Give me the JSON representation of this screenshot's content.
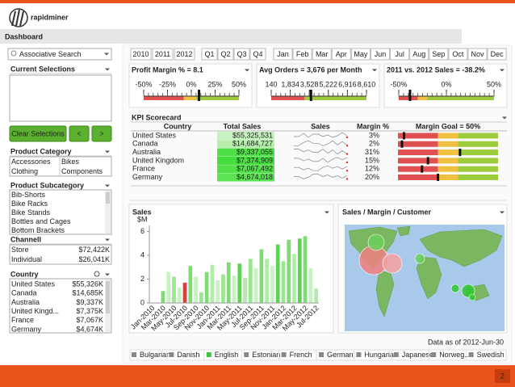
{
  "header": {
    "logo": "rapidminer",
    "title": "Dashboard",
    "page_number": "2"
  },
  "sidebar": {
    "search": "Associative Search",
    "current_selections": "Current Selections",
    "buttons": [
      "Clear Selections",
      "<",
      ">"
    ],
    "product_category": {
      "title": "Product Category",
      "items": [
        "Accessories",
        "Bikes",
        "Clothing",
        "Components"
      ]
    },
    "product_subcategory": {
      "title": "Product Subcategory",
      "items": [
        "Bib-Shorts",
        "Bike Racks",
        "Bike Stands",
        "Bottles and Cages",
        "Bottom Brackets"
      ]
    },
    "channel": {
      "title": "Channell",
      "rows": [
        [
          "Store",
          "$72,422K"
        ],
        [
          "Individual",
          "$26,041K"
        ]
      ]
    },
    "country": {
      "title": "Country",
      "rows": [
        [
          "United States",
          "$55,326K"
        ],
        [
          "Canada",
          "$14,685K"
        ],
        [
          "Australia",
          "$9,337K"
        ],
        [
          "United Kingd...",
          "$7,375K"
        ],
        [
          "France",
          "$7,067K"
        ],
        [
          "Germany",
          "$4,674K"
        ]
      ]
    }
  },
  "time_filter": {
    "years": [
      "2010",
      "2011",
      "2012"
    ],
    "quarters": [
      "Q1",
      "Q2",
      "Q3",
      "Q4"
    ],
    "months": [
      "Jan",
      "Feb",
      "Mar",
      "Apr",
      "May",
      "Jun",
      "Jul",
      "Aug",
      "Sep",
      "Oct",
      "Nov",
      "Dec"
    ]
  },
  "gauges": [
    {
      "title": "Profit Margin % = 8.1",
      "value": 8.1,
      "ticks": [
        {
          "value": -50,
          "label": "-50%"
        },
        {
          "value": -25,
          "label": "-25%"
        },
        {
          "value": 0,
          "label": "0%"
        },
        {
          "value": 25,
          "label": "25%"
        },
        {
          "value": 50,
          "label": "50%"
        }
      ]
    },
    {
      "title": "Avg Orders = 3,676 per Month",
      "value": 3676,
      "ticks": [
        140,
        {
          "value": 1834,
          "label": "1,834"
        },
        {
          "value": 3528,
          "label": "3,528"
        },
        {
          "value": 5222,
          "label": "5,222"
        },
        {
          "value": 6916,
          "label": "6,916"
        },
        {
          "value": 8610,
          "label": "8,610"
        }
      ]
    },
    {
      "title": "2011 vs. 2012 Sales = -38.2%",
      "value": -38.2,
      "ticks": [
        {
          "value": -50,
          "label": "-50%"
        },
        {
          "value": 0,
          "label": "0%"
        },
        {
          "value": 50,
          "label": "50%"
        }
      ]
    }
  ],
  "kpi": {
    "title": "KPI Scorecard",
    "columns": [
      "Country",
      "Total Sales",
      "Sales",
      "Margin %",
      "Margin Goal = 50%"
    ],
    "margin_goal": 50,
    "rows": [
      {
        "country": "United States",
        "total_sales": "$55,325,531",
        "margin": 3,
        "margin_label": "3%"
      },
      {
        "country": "Canada",
        "total_sales": "$14,684,727",
        "margin": 2,
        "margin_label": "2%"
      },
      {
        "country": "Australia",
        "total_sales": "$9,337,055",
        "margin": 31,
        "margin_label": "31%"
      },
      {
        "country": "United Kingdom",
        "total_sales": "$7,374,909",
        "margin": 15,
        "margin_label": "15%"
      },
      {
        "country": "France",
        "total_sales": "$7,067,492",
        "margin": 12,
        "margin_label": "12%"
      },
      {
        "country": "Germany",
        "total_sales": "$4,674,018",
        "margin": 20,
        "margin_label": "20%"
      }
    ]
  },
  "sales_chart": {
    "title": "Sales",
    "unit": "$M",
    "categories": [
      "Jan-2010",
      null,
      "Mar-2010",
      null,
      "May-2010",
      null,
      "Jul-2010",
      null,
      "Sep-2010",
      null,
      "Nov-2010",
      null,
      "Jan-2011",
      null,
      "Mar-2011",
      null,
      "May-2011",
      null,
      "Jul-2011",
      null,
      "Sep-2011",
      null,
      "Nov-2011",
      null,
      "Jan-2012",
      null,
      "Mar-2012",
      null,
      "May-2012",
      null,
      "Jul-2012"
    ],
    "values": [
      0,
      0,
      1.0,
      2.6,
      2.2,
      1.3,
      1.7,
      3.1,
      2.2,
      0.9,
      2.6,
      3.2,
      1.9,
      2.4,
      3.4,
      2.3,
      3.3,
      2.1,
      3.7,
      2.9,
      4.5,
      3.7,
      3.1,
      4.9,
      3.5,
      5.3,
      4.1,
      5.4,
      5.6,
      2.9,
      1.2
    ],
    "colors": [
      "#c9f2c3",
      "#c9f2c3",
      "#7fdc75",
      "#c9f2c3",
      "#9be691",
      "#c9f2c3",
      "#e03c3c",
      "#7fdc75",
      "#c9f2c3",
      "#9be691",
      "#7fdc75",
      "#b2ecaa",
      "#c9f2c3",
      "#9be691",
      "#7fdc75",
      "#c9f2c3",
      "#5fd155",
      "#b2ecaa",
      "#9be691",
      "#c9f2c3",
      "#7fdc75",
      "#b2ecaa",
      "#c9f2c3",
      "#5fd155",
      "#9be691",
      "#7fdc75",
      "#b2ecaa",
      "#5fd155",
      "#7fdc75",
      "#c9f2c3",
      "#b2ecaa"
    ],
    "ylim": [
      0,
      6.5
    ],
    "yticks": [
      0,
      2,
      4,
      6
    ]
  },
  "map": {
    "title": "Sales / Margin / Customer",
    "note": "Data as of 2012-Jun-30"
  },
  "languages": [
    "Bulgarian",
    "Danish",
    "English",
    "Estonian",
    "French",
    "German",
    "Hungarian",
    "Japanese",
    "Norweg...",
    "Swedish"
  ]
}
